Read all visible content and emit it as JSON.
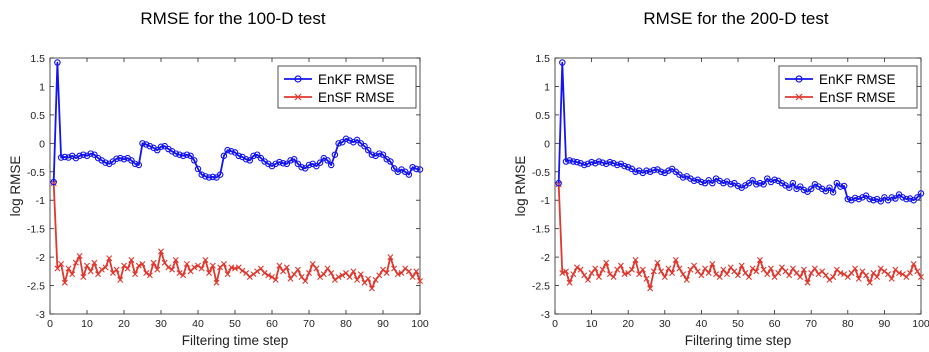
{
  "chart_data": [
    {
      "type": "line",
      "title": "RMSE for the 100-D test",
      "xlabel": "Filtering time step",
      "ylabel": "log RMSE",
      "xlim": [
        0,
        100
      ],
      "ylim": [
        -3,
        1.5
      ],
      "xticks": [
        "0",
        "10",
        "20",
        "30",
        "40",
        "50",
        "60",
        "70",
        "80",
        "90",
        "100"
      ],
      "yticks": [
        "-3",
        "-2.5",
        "-2",
        "-1.5",
        "-1",
        "-0.5",
        "0",
        "0.5",
        "1",
        "1.5"
      ],
      "grid": false,
      "legend_position": "top-right",
      "series": [
        {
          "name": "EnKF RMSE",
          "color": "#1414f0",
          "marker": "circle",
          "x": [
            1,
            2,
            3,
            4,
            5,
            6,
            7,
            8,
            9,
            10,
            11,
            12,
            13,
            14,
            15,
            16,
            17,
            18,
            19,
            20,
            21,
            22,
            23,
            24,
            25,
            26,
            27,
            28,
            29,
            30,
            31,
            32,
            33,
            34,
            35,
            36,
            37,
            38,
            39,
            40,
            41,
            42,
            43,
            44,
            45,
            46,
            47,
            48,
            49,
            50,
            51,
            52,
            53,
            54,
            55,
            56,
            57,
            58,
            59,
            60,
            61,
            62,
            63,
            64,
            65,
            66,
            67,
            68,
            69,
            70,
            71,
            72,
            73,
            74,
            75,
            76,
            77,
            78,
            79,
            80,
            81,
            82,
            83,
            84,
            85,
            86,
            87,
            88,
            89,
            90,
            91,
            92,
            93,
            94,
            95,
            96,
            97,
            98,
            99,
            100
          ],
          "values": [
            -0.68,
            1.42,
            -0.25,
            -0.24,
            -0.25,
            -0.22,
            -0.26,
            -0.22,
            -0.2,
            -0.22,
            -0.18,
            -0.2,
            -0.26,
            -0.3,
            -0.34,
            -0.36,
            -0.32,
            -0.27,
            -0.26,
            -0.28,
            -0.26,
            -0.3,
            -0.36,
            -0.38,
            0.0,
            -0.02,
            -0.05,
            -0.08,
            -0.12,
            -0.06,
            -0.05,
            -0.1,
            -0.14,
            -0.18,
            -0.2,
            -0.22,
            -0.2,
            -0.22,
            -0.3,
            -0.45,
            -0.55,
            -0.58,
            -0.6,
            -0.59,
            -0.6,
            -0.55,
            -0.22,
            -0.12,
            -0.14,
            -0.16,
            -0.22,
            -0.24,
            -0.28,
            -0.3,
            -0.22,
            -0.2,
            -0.26,
            -0.32,
            -0.36,
            -0.4,
            -0.36,
            -0.33,
            -0.35,
            -0.36,
            -0.3,
            -0.28,
            -0.36,
            -0.42,
            -0.44,
            -0.38,
            -0.36,
            -0.4,
            -0.34,
            -0.26,
            -0.3,
            -0.38,
            -0.2,
            0.0,
            0.02,
            0.08,
            0.05,
            0.02,
            0.06,
            0.0,
            -0.05,
            -0.12,
            -0.2,
            -0.22,
            -0.18,
            -0.2,
            -0.28,
            -0.32,
            -0.44,
            -0.5,
            -0.46,
            -0.5,
            -0.55,
            -0.42,
            -0.45,
            -0.46
          ]
        },
        {
          "name": "EnSF RMSE",
          "color": "#e0382e",
          "marker": "x",
          "x": [
            1,
            2,
            3,
            4,
            5,
            6,
            7,
            8,
            9,
            10,
            11,
            12,
            13,
            14,
            15,
            16,
            17,
            18,
            19,
            20,
            21,
            22,
            23,
            24,
            25,
            26,
            27,
            28,
            29,
            30,
            31,
            32,
            33,
            34,
            35,
            36,
            37,
            38,
            39,
            40,
            41,
            42,
            43,
            44,
            45,
            46,
            47,
            48,
            49,
            50,
            51,
            52,
            53,
            54,
            55,
            56,
            57,
            58,
            59,
            60,
            61,
            62,
            63,
            64,
            65,
            66,
            67,
            68,
            69,
            70,
            71,
            72,
            73,
            74,
            75,
            76,
            77,
            78,
            79,
            80,
            81,
            82,
            83,
            84,
            85,
            86,
            87,
            88,
            89,
            90,
            91,
            92,
            93,
            94,
            95,
            96,
            97,
            98,
            99,
            100
          ],
          "values": [
            -0.7,
            -2.2,
            -2.12,
            -2.45,
            -2.2,
            -2.3,
            -2.1,
            -1.98,
            -2.35,
            -2.15,
            -2.25,
            -2.1,
            -2.3,
            -2.22,
            -2.18,
            -2.02,
            -2.28,
            -2.22,
            -2.4,
            -2.15,
            -2.2,
            -2.05,
            -2.3,
            -2.15,
            -2.12,
            -2.28,
            -2.32,
            -2.1,
            -2.22,
            -1.9,
            -2.1,
            -2.18,
            -2.22,
            -2.05,
            -2.28,
            -2.32,
            -2.12,
            -2.25,
            -2.18,
            -2.15,
            -2.2,
            -2.05,
            -2.28,
            -2.15,
            -2.45,
            -2.18,
            -2.12,
            -2.3,
            -2.18,
            -2.2,
            -2.18,
            -2.24,
            -2.28,
            -2.35,
            -2.3,
            -2.25,
            -2.2,
            -2.28,
            -2.32,
            -2.35,
            -2.4,
            -2.15,
            -2.25,
            -2.18,
            -2.38,
            -2.3,
            -2.22,
            -2.35,
            -2.42,
            -2.28,
            -2.12,
            -2.2,
            -2.35,
            -2.3,
            -2.2,
            -2.28,
            -2.4,
            -2.35,
            -2.32,
            -2.28,
            -2.35,
            -2.25,
            -2.4,
            -2.3,
            -2.45,
            -2.38,
            -2.55,
            -2.4,
            -2.32,
            -2.22,
            -2.28,
            -2.0,
            -2.2,
            -2.3,
            -2.28,
            -2.2,
            -2.25,
            -2.35,
            -2.25,
            -2.42
          ]
        }
      ]
    },
    {
      "type": "line",
      "title": "RMSE for the 200-D test",
      "xlabel": "Filtering time step",
      "ylabel": "log RMSE",
      "xlim": [
        0,
        100
      ],
      "ylim": [
        -3,
        1.5
      ],
      "xticks": [
        "0",
        "10",
        "20",
        "30",
        "40",
        "50",
        "60",
        "70",
        "80",
        "90",
        "100"
      ],
      "yticks": [
        "-3",
        "-2.5",
        "-2",
        "-1.5",
        "-1",
        "-0.5",
        "0",
        "0.5",
        "1",
        "1.5"
      ],
      "grid": false,
      "legend_position": "top-right",
      "series": [
        {
          "name": "EnKF RMSE",
          "color": "#1414f0",
          "marker": "circle",
          "x": [
            1,
            2,
            3,
            4,
            5,
            6,
            7,
            8,
            9,
            10,
            11,
            12,
            13,
            14,
            15,
            16,
            17,
            18,
            19,
            20,
            21,
            22,
            23,
            24,
            25,
            26,
            27,
            28,
            29,
            30,
            31,
            32,
            33,
            34,
            35,
            36,
            37,
            38,
            39,
            40,
            41,
            42,
            43,
            44,
            45,
            46,
            47,
            48,
            49,
            50,
            51,
            52,
            53,
            54,
            55,
            56,
            57,
            58,
            59,
            60,
            61,
            62,
            63,
            64,
            65,
            66,
            67,
            68,
            69,
            70,
            71,
            72,
            73,
            74,
            75,
            76,
            77,
            78,
            79,
            80,
            81,
            82,
            83,
            84,
            85,
            86,
            87,
            88,
            89,
            90,
            91,
            92,
            93,
            94,
            95,
            96,
            97,
            98,
            99,
            100
          ],
          "values": [
            -0.7,
            1.42,
            -0.32,
            -0.3,
            -0.32,
            -0.33,
            -0.35,
            -0.38,
            -0.36,
            -0.33,
            -0.35,
            -0.32,
            -0.34,
            -0.36,
            -0.33,
            -0.35,
            -0.38,
            -0.36,
            -0.4,
            -0.42,
            -0.45,
            -0.5,
            -0.48,
            -0.52,
            -0.48,
            -0.5,
            -0.47,
            -0.46,
            -0.5,
            -0.52,
            -0.48,
            -0.45,
            -0.5,
            -0.55,
            -0.6,
            -0.58,
            -0.62,
            -0.66,
            -0.64,
            -0.68,
            -0.7,
            -0.65,
            -0.7,
            -0.62,
            -0.66,
            -0.7,
            -0.67,
            -0.72,
            -0.7,
            -0.75,
            -0.78,
            -0.74,
            -0.7,
            -0.65,
            -0.72,
            -0.7,
            -0.72,
            -0.62,
            -0.68,
            -0.64,
            -0.66,
            -0.7,
            -0.74,
            -0.78,
            -0.7,
            -0.8,
            -0.76,
            -0.82,
            -0.85,
            -0.8,
            -0.72,
            -0.76,
            -0.8,
            -0.84,
            -0.78,
            -0.86,
            -0.7,
            -0.76,
            -0.75,
            -0.98,
            -1.0,
            -0.96,
            -0.98,
            -0.95,
            -0.92,
            -0.98,
            -1.0,
            -0.98,
            -1.02,
            -0.95,
            -1.0,
            -0.95,
            -0.97,
            -0.9,
            -0.95,
            -0.98,
            -0.97,
            -1.0,
            -0.95,
            -0.88
          ]
        },
        {
          "name": "EnSF RMSE",
          "color": "#e0382e",
          "marker": "x",
          "x": [
            1,
            2,
            3,
            4,
            5,
            6,
            7,
            8,
            9,
            10,
            11,
            12,
            13,
            14,
            15,
            16,
            17,
            18,
            19,
            20,
            21,
            22,
            23,
            24,
            25,
            26,
            27,
            28,
            29,
            30,
            31,
            32,
            33,
            34,
            35,
            36,
            37,
            38,
            39,
            40,
            41,
            42,
            43,
            44,
            45,
            46,
            47,
            48,
            49,
            50,
            51,
            52,
            53,
            54,
            55,
            56,
            57,
            58,
            59,
            60,
            61,
            62,
            63,
            64,
            65,
            66,
            67,
            68,
            69,
            70,
            71,
            72,
            73,
            74,
            75,
            76,
            77,
            78,
            79,
            80,
            81,
            82,
            83,
            84,
            85,
            86,
            87,
            88,
            89,
            90,
            91,
            92,
            93,
            94,
            95,
            96,
            97,
            98,
            99,
            100
          ],
          "values": [
            -0.72,
            -2.28,
            -2.25,
            -2.45,
            -2.3,
            -2.18,
            -2.22,
            -2.32,
            -2.4,
            -2.28,
            -2.2,
            -2.35,
            -2.22,
            -2.1,
            -2.3,
            -2.35,
            -2.22,
            -2.15,
            -2.3,
            -2.28,
            -2.22,
            -2.05,
            -2.3,
            -2.22,
            -2.38,
            -2.55,
            -2.25,
            -2.1,
            -2.25,
            -2.35,
            -2.2,
            -2.28,
            -2.05,
            -2.2,
            -2.3,
            -2.4,
            -2.22,
            -2.15,
            -2.25,
            -2.32,
            -2.2,
            -2.28,
            -2.12,
            -2.3,
            -2.35,
            -2.22,
            -2.3,
            -2.18,
            -2.25,
            -2.32,
            -2.15,
            -2.28,
            -2.35,
            -2.2,
            -2.25,
            -2.05,
            -2.22,
            -2.3,
            -2.2,
            -2.35,
            -2.28,
            -2.18,
            -2.25,
            -2.32,
            -2.2,
            -2.28,
            -2.35,
            -2.22,
            -2.45,
            -2.28,
            -2.2,
            -2.3,
            -2.25,
            -2.32,
            -2.4,
            -2.35,
            -2.22,
            -2.28,
            -2.3,
            -2.35,
            -2.28,
            -2.2,
            -2.38,
            -2.25,
            -2.32,
            -2.45,
            -2.28,
            -2.35,
            -2.2,
            -2.25,
            -2.3,
            -2.38,
            -2.22,
            -2.28,
            -2.3,
            -2.35,
            -2.28,
            -2.12,
            -2.25,
            -2.35
          ]
        }
      ]
    }
  ]
}
